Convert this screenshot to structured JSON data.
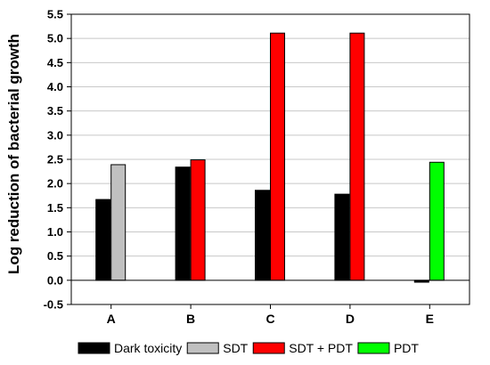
{
  "chart_data": {
    "type": "bar",
    "title": "",
    "xlabel": "",
    "ylabel": "Log reduction of bacterial growth",
    "ylim": [
      -0.5,
      5.5
    ],
    "yticks": [
      "-0.5",
      "0.0",
      "0.5",
      "1.0",
      "1.5",
      "2.0",
      "2.5",
      "3.0",
      "3.5",
      "4.0",
      "4.5",
      "5.0",
      "5.5"
    ],
    "grid": "horizontal",
    "legend_position": "bottom",
    "categories": [
      "A",
      "B",
      "C",
      "D",
      "E"
    ],
    "series": [
      {
        "name": "Dark toxicity",
        "color": "#000000",
        "values": [
          1.67,
          2.34,
          1.86,
          1.78,
          -0.04
        ]
      },
      {
        "name": "SDT",
        "color": "#c0c0c0",
        "values": [
          2.39,
          null,
          null,
          null,
          null
        ]
      },
      {
        "name": "SDT + PDT",
        "color": "#ff0000",
        "values": [
          null,
          2.49,
          5.11,
          5.11,
          null
        ]
      },
      {
        "name": "PDT",
        "color": "#00ff00",
        "values": [
          null,
          null,
          null,
          null,
          2.44
        ]
      }
    ]
  }
}
